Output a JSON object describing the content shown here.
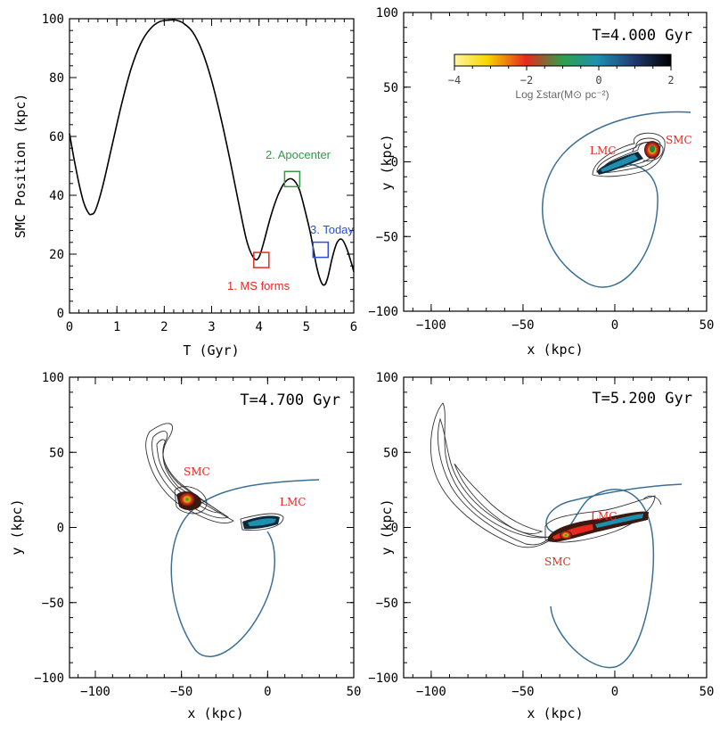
{
  "colors": {
    "orbit": "#3a6f96",
    "ms_forms": "#e8281e",
    "apocenter": "#2e9a4a",
    "today": "#2a4fe0",
    "galaxy_label": "#e8281e",
    "contour": "#333333"
  },
  "chart_data": [
    {
      "type": "line",
      "xlabel": "T (Gyr)",
      "ylabel": "SMC Position (kpc)",
      "xlim": [
        0,
        6
      ],
      "ylim": [
        0,
        100
      ],
      "x_ticks": [
        "0",
        "1",
        "2",
        "3",
        "4",
        "5",
        "6"
      ],
      "y_ticks": [
        "0",
        "20",
        "40",
        "60",
        "80",
        "100"
      ],
      "series": [
        {
          "x": [
            0,
            0.1,
            0.2,
            0.3,
            0.4,
            0.46,
            0.55,
            0.7,
            0.9,
            1.1,
            1.3,
            1.5,
            1.7,
            1.9,
            2.1,
            2.25,
            2.4,
            2.6,
            2.8,
            3.0,
            3.2,
            3.4,
            3.6,
            3.75,
            3.9,
            4.0,
            4.1,
            4.25,
            4.4,
            4.55,
            4.7,
            4.85,
            5.0,
            5.1,
            5.2,
            5.3,
            5.38,
            5.45,
            5.55,
            5.65,
            5.75,
            5.85,
            5.95,
            6.0
          ],
          "y": [
            61,
            52,
            44,
            37.5,
            34,
            33.5,
            35,
            43,
            57,
            71,
            83,
            91.5,
            96.5,
            99,
            99.5,
            99.5,
            98.5,
            95.5,
            89,
            79,
            66,
            51,
            35,
            24,
            18.5,
            19,
            24,
            33,
            40,
            44.5,
            45.5,
            42,
            33,
            26,
            17,
            11,
            9.5,
            12,
            19,
            24,
            25,
            22,
            17,
            14
          ]
        }
      ],
      "annotations": [
        {
          "text": "1. MS forms",
          "x": 4.05,
          "y": 18,
          "color": "#e8281e"
        },
        {
          "text": "2. Apocenter",
          "x": 4.7,
          "y": 45.5,
          "color": "#2e9a4a"
        },
        {
          "text": "3. Today",
          "x": 5.3,
          "y": 21.5,
          "color": "#2a4fe0"
        }
      ]
    },
    {
      "type": "scatter",
      "title": "T=4.000 Gyr",
      "xlabel": "x (kpc)",
      "ylabel": "y (kpc)",
      "xlim": [
        -115,
        50
      ],
      "ylim": [
        -100,
        100
      ],
      "x_ticks": [
        "−100",
        "−50",
        "0",
        "50"
      ],
      "y_ticks": [
        "−100",
        "−50",
        "0",
        "50",
        "100"
      ],
      "labels": [
        {
          "text": "LMC",
          "x": -10,
          "y": 7
        },
        {
          "text": "SMC",
          "x": 23,
          "y": 13
        }
      ],
      "colorbar": {
        "label": "Log Σstar(M⊙ pc⁻²)",
        "ticks": [
          "−4",
          "−2",
          "0",
          "2"
        ],
        "range": [
          -4,
          2
        ]
      }
    },
    {
      "type": "scatter",
      "title": "T=4.700 Gyr",
      "xlabel": "x (kpc)",
      "ylabel": "y (kpc)",
      "xlim": [
        -115,
        50
      ],
      "ylim": [
        -100,
        100
      ],
      "x_ticks": [
        "−100",
        "−50",
        "0",
        "50"
      ],
      "y_ticks": [
        "−100",
        "−50",
        "0",
        "50",
        "100"
      ],
      "labels": [
        {
          "text": "SMC",
          "x": -45,
          "y": 32
        },
        {
          "text": "LMC",
          "x": 20,
          "y": 12
        }
      ]
    },
    {
      "type": "scatter",
      "title": "T=5.200 Gyr",
      "xlabel": "x (kpc)",
      "ylabel": "y (kpc)",
      "xlim": [
        -115,
        50
      ],
      "ylim": [
        -100,
        100
      ],
      "x_ticks": [
        "−100",
        "−50",
        "0",
        "50"
      ],
      "y_ticks": [
        "−100",
        "−50",
        "0",
        "50",
        "100"
      ],
      "labels": [
        {
          "text": "LMC",
          "x": -8,
          "y": 6
        },
        {
          "text": "SMC",
          "x": -35,
          "y": -18
        }
      ]
    }
  ]
}
